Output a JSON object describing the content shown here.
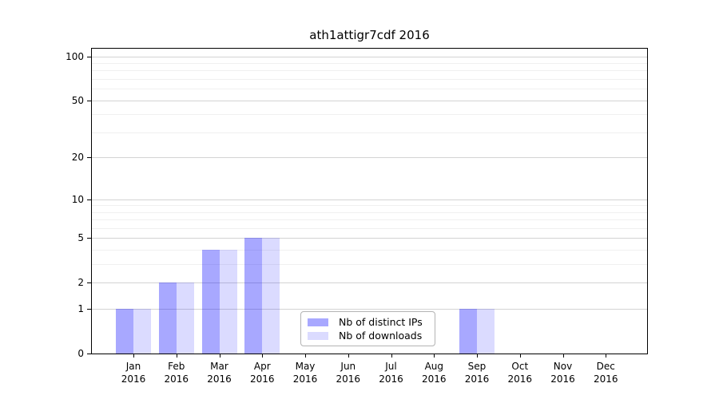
{
  "chart_data": {
    "type": "bar",
    "title": "ath1attigr7cdf 2016",
    "categories": [
      "Jan 2016",
      "Feb 2016",
      "Mar 2016",
      "Apr 2016",
      "May 2016",
      "Jun 2016",
      "Jul 2016",
      "Aug 2016",
      "Sep 2016",
      "Oct 2016",
      "Nov 2016",
      "Dec 2016"
    ],
    "series": [
      {
        "name": "Nb of distinct IPs",
        "color": "rgba(0,0,255,0.34)",
        "values": [
          1,
          2,
          4,
          5,
          0,
          0,
          0,
          0,
          1,
          0,
          0,
          0
        ]
      },
      {
        "name": "Nb of downloads",
        "color": "rgba(0,0,255,0.14)",
        "values": [
          1,
          2,
          4,
          5,
          0,
          0,
          0,
          0,
          1,
          0,
          0,
          0
        ]
      }
    ],
    "yaxis": {
      "scale": "log1p",
      "range": [
        0,
        100
      ],
      "ticks": [
        100,
        50,
        20,
        10,
        5,
        2,
        1,
        0
      ],
      "minor_ticks": [
        3,
        4,
        6,
        7,
        8,
        9,
        30,
        40,
        60,
        70,
        80,
        90
      ]
    },
    "legend": {
      "position": "lower-center"
    },
    "colors": {
      "grid_major": "#d3d3d3",
      "grid_minor": "#f0f0f0",
      "frame": "#000000",
      "background": "#ffffff"
    }
  }
}
